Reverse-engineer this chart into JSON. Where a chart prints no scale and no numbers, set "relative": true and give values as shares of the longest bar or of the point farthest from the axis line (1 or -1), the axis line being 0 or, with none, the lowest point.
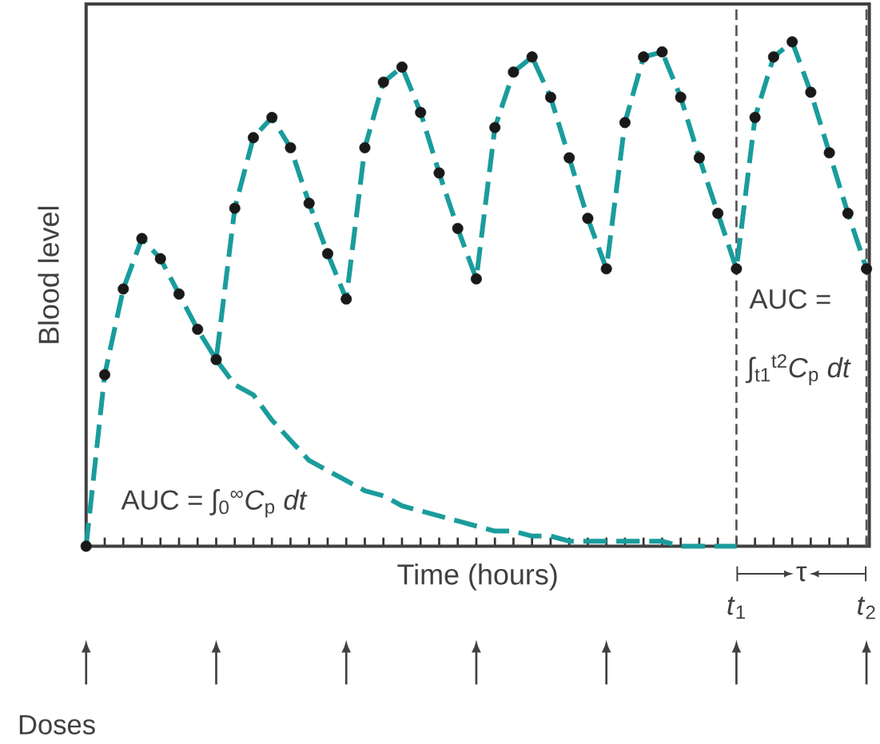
{
  "chart_data": {
    "type": "line",
    "relative": true,
    "xlabel": "Time (hours)",
    "ylabel": "Blood level",
    "categories": [
      null,
      null,
      null,
      null,
      null,
      null,
      null,
      null,
      null,
      null,
      null,
      null,
      null,
      null,
      null,
      null,
      null,
      null,
      null,
      null,
      null,
      null,
      null,
      null,
      null,
      null,
      null,
      null,
      null,
      null,
      null,
      null,
      null,
      null,
      null,
      null,
      null,
      null,
      null,
      null,
      null,
      null,
      null
    ],
    "marker": "circle",
    "line_style": "dashed",
    "series": [
      {
        "color": "#1a9c9c",
        "marker": "none",
        "values": [
          null,
          null,
          null,
          null,
          null,
          null,
          null,
          0.37,
          0.32,
          0.3,
          0.25,
          0.21,
          0.17,
          0.15,
          0.13,
          0.11,
          0.1,
          0.08,
          0.07,
          0.06,
          0.05,
          0.04,
          0.03,
          0.03,
          0.02,
          0.02,
          0.01,
          0.01,
          0.01,
          0.01,
          0.01,
          0.01,
          0.0,
          0.0,
          0.0,
          0.0,
          null,
          null,
          null,
          null,
          null,
          null,
          null
        ]
      },
      {
        "color": "#1a9c9c",
        "values": [
          0,
          0.34,
          0.51,
          0.61,
          0.57,
          0.5,
          0.43,
          0.37,
          0.67,
          0.81,
          0.85,
          0.79,
          0.68,
          0.58,
          0.49,
          0.79,
          0.92,
          0.95,
          0.86,
          0.74,
          0.63,
          0.53,
          0.83,
          0.94,
          0.97,
          0.89,
          0.77,
          0.65,
          0.55,
          0.84,
          0.97,
          0.98,
          0.89,
          0.77,
          0.66,
          0.55,
          0.85,
          0.97,
          1.0,
          0.9,
          0.78,
          0.66,
          0.55
        ]
      }
    ],
    "annotations": [
      "AUC = ∫$_{0}$$^{∞}$*C*$_{p}$ *dt*",
      "AUC =",
      "∫$_{t1}$$^{t2}$*C*$_{p}$ *dt*",
      "τ",
      "Doses",
      "*t*$_{1}$",
      "*t*$_{2}$"
    ]
  }
}
